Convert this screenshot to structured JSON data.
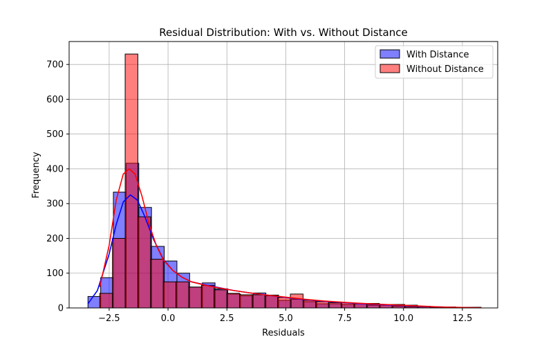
{
  "chart_data": {
    "type": "bar",
    "subtype": "overlaid-histogram-with-kde",
    "title": "Residual Distribution: With vs. Without Distance",
    "xlabel": "Residuals",
    "ylabel": "Frequency",
    "xlim": [
      -4.2,
      14.0
    ],
    "ylim": [
      0,
      766
    ],
    "xticks": [
      -2.5,
      0.0,
      2.5,
      5.0,
      7.5,
      10.0,
      12.5
    ],
    "xtick_labels": [
      "−2.5",
      "0.0",
      "2.5",
      "5.0",
      "7.5",
      "10.0",
      "12.5"
    ],
    "yticks": [
      0,
      100,
      200,
      300,
      400,
      500,
      600,
      700
    ],
    "ytick_labels": [
      "0",
      "100",
      "200",
      "300",
      "400",
      "500",
      "600",
      "700"
    ],
    "grid": true,
    "legend_position": "top-right",
    "series": [
      {
        "name": "With Distance",
        "color": "#0000ff",
        "fill_alpha": 0.5,
        "bin_start": -3.4,
        "bin_width": 0.5397,
        "counts": [
          33,
          87,
          333,
          416,
          289,
          177,
          135,
          100,
          60,
          72,
          55,
          40,
          35,
          43,
          37,
          22,
          25,
          18,
          12,
          12,
          10,
          13,
          8,
          8,
          5,
          3,
          3,
          2,
          2,
          1
        ],
        "kde": [
          [
            -3.4,
            12
          ],
          [
            -3.0,
            50
          ],
          [
            -2.5,
            155
          ],
          [
            -2.2,
            240
          ],
          [
            -1.9,
            305
          ],
          [
            -1.6,
            325
          ],
          [
            -1.3,
            310
          ],
          [
            -1.0,
            265
          ],
          [
            -0.6,
            195
          ],
          [
            -0.2,
            140
          ],
          [
            0.2,
            108
          ],
          [
            0.6,
            88
          ],
          [
            1.0,
            75
          ],
          [
            1.6,
            66
          ],
          [
            2.2,
            58
          ],
          [
            2.8,
            50
          ],
          [
            3.5,
            43
          ],
          [
            4.2,
            37
          ],
          [
            5.0,
            30
          ],
          [
            5.8,
            24
          ],
          [
            6.6,
            19
          ],
          [
            7.5,
            15
          ],
          [
            8.5,
            11
          ],
          [
            9.5,
            8
          ],
          [
            10.5,
            5
          ],
          [
            11.5,
            3
          ],
          [
            12.5,
            1
          ],
          [
            13.3,
            0.5
          ]
        ]
      },
      {
        "name": "Without Distance",
        "color": "#ff0000",
        "fill_alpha": 0.5,
        "bin_start": -2.9,
        "bin_width": 0.5397,
        "counts": [
          42,
          200,
          730,
          262,
          140,
          75,
          75,
          60,
          65,
          52,
          42,
          38,
          38,
          35,
          30,
          40,
          22,
          18,
          15,
          15,
          12,
          13,
          10,
          10,
          8,
          5,
          3,
          3,
          2,
          2
        ],
        "kde": [
          [
            -2.9,
            60
          ],
          [
            -2.5,
            180
          ],
          [
            -2.2,
            310
          ],
          [
            -1.9,
            385
          ],
          [
            -1.65,
            400
          ],
          [
            -1.4,
            385
          ],
          [
            -1.1,
            320
          ],
          [
            -0.8,
            240
          ],
          [
            -0.5,
            180
          ],
          [
            -0.2,
            138
          ],
          [
            0.2,
            108
          ],
          [
            0.6,
            88
          ],
          [
            1.0,
            75
          ],
          [
            1.6,
            65
          ],
          [
            2.2,
            57
          ],
          [
            2.8,
            50
          ],
          [
            3.5,
            43
          ],
          [
            4.2,
            37
          ],
          [
            5.0,
            31
          ],
          [
            5.8,
            25
          ],
          [
            6.6,
            20
          ],
          [
            7.5,
            16
          ],
          [
            8.5,
            12
          ],
          [
            9.5,
            9
          ],
          [
            10.5,
            6
          ],
          [
            11.5,
            3
          ],
          [
            12.5,
            1.5
          ],
          [
            13.3,
            0.5
          ]
        ]
      }
    ]
  }
}
